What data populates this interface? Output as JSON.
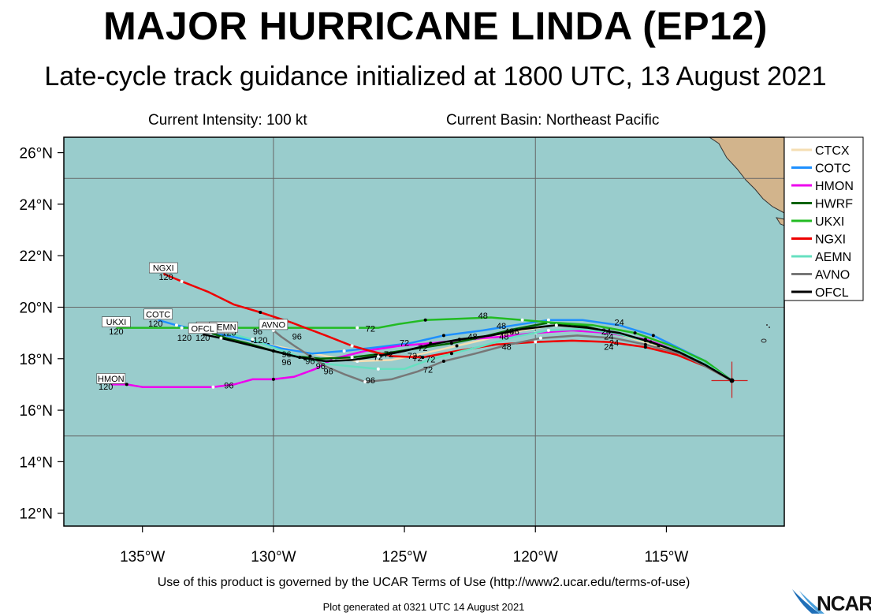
{
  "header": {
    "title": "MAJOR HURRICANE LINDA (EP12)",
    "subtitle": "Late-cycle track guidance initialized at 1800 UTC, 13 August 2021",
    "intensity": "Current Intensity: 100 kt",
    "basin": "Current Basin: Northeast Pacific"
  },
  "footer": {
    "terms": "Use of this product is governed by the UCAR Terms of Use (http://www2.ucar.edu/terms-of-use)",
    "generated": "Plot generated at 0321 UTC   14 August 2021",
    "logo": "NCAR"
  },
  "map": {
    "lon_range": [
      -138,
      -110.5
    ],
    "lat_range": [
      11.5,
      26.6
    ],
    "lon_ticks": [
      {
        "v": -135,
        "label": "135°W"
      },
      {
        "v": -130,
        "label": "130°W"
      },
      {
        "v": -125,
        "label": "125°W"
      },
      {
        "v": -120,
        "label": "120°W"
      },
      {
        "v": -115,
        "label": "115°W"
      }
    ],
    "lat_ticks": [
      {
        "v": 12,
        "label": "12°N"
      },
      {
        "v": 14,
        "label": "14°N"
      },
      {
        "v": 16,
        "label": "16°N"
      },
      {
        "v": 18,
        "label": "18°N"
      },
      {
        "v": 20,
        "label": "20°N"
      },
      {
        "v": 22,
        "label": "22°N"
      },
      {
        "v": 24,
        "label": "24°N"
      },
      {
        "v": 26,
        "label": "26°N"
      }
    ],
    "grid_lons": [
      -130,
      -120
    ],
    "grid_lats": [
      15,
      20,
      25
    ],
    "ocean_color": "#99cccc",
    "land_color": "#d2b48c",
    "storm_position": [
      -112.5,
      17.15
    ]
  },
  "chart_data": {
    "type": "map-tracks",
    "series": [
      {
        "name": "CTCX",
        "color": "#f5deb3",
        "points": [
          [
            -112.5,
            17.15
          ],
          [
            -113.5,
            17.7
          ],
          [
            -114.3,
            18.1
          ],
          [
            -115.3,
            18.5
          ],
          [
            -116.7,
            18.9
          ],
          [
            -118.0,
            19.2
          ],
          [
            -119.3,
            19.3
          ],
          [
            -120.5,
            19.1
          ],
          [
            -121.7,
            18.8
          ],
          [
            -123.0,
            18.5
          ],
          [
            -124.3,
            18.2
          ],
          [
            -125.5,
            17.95
          ],
          [
            -126.8,
            17.9
          ],
          [
            -128.0,
            18.1
          ],
          [
            -129.0,
            18.3
          ],
          [
            -130.2,
            18.55
          ],
          [
            -131.3,
            18.8
          ],
          [
            -132.0,
            18.95
          ]
        ],
        "end_label": "CTCX"
      },
      {
        "name": "COTC",
        "color": "#1e90ff",
        "points": [
          [
            -112.5,
            17.15
          ],
          [
            -113.5,
            17.9
          ],
          [
            -114.5,
            18.4
          ],
          [
            -115.5,
            18.9
          ],
          [
            -116.8,
            19.3
          ],
          [
            -118.2,
            19.5
          ],
          [
            -119.5,
            19.5
          ],
          [
            -120.8,
            19.3
          ],
          [
            -122.0,
            19.1
          ],
          [
            -123.5,
            18.9
          ],
          [
            -124.8,
            18.6
          ],
          [
            -126.0,
            18.45
          ],
          [
            -127.3,
            18.3
          ],
          [
            -128.5,
            18.2
          ],
          [
            -129.7,
            18.4
          ],
          [
            -130.8,
            18.7
          ],
          [
            -131.8,
            18.9
          ],
          [
            -132.8,
            19.1
          ],
          [
            -133.7,
            19.3
          ],
          [
            -134.4,
            19.5
          ]
        ],
        "end_label": "COTC"
      },
      {
        "name": "HMON",
        "color": "#ee00ee",
        "points": [
          [
            -112.5,
            17.15
          ],
          [
            -113.5,
            17.8
          ],
          [
            -114.5,
            18.3
          ],
          [
            -115.8,
            18.75
          ],
          [
            -117.2,
            19.0
          ],
          [
            -118.6,
            19.1
          ],
          [
            -120.0,
            19.0
          ],
          [
            -121.3,
            18.85
          ],
          [
            -122.6,
            18.75
          ],
          [
            -124.0,
            18.6
          ],
          [
            -125.2,
            18.5
          ],
          [
            -126.5,
            18.3
          ],
          [
            -127.7,
            18.0
          ],
          [
            -128.4,
            17.6
          ],
          [
            -129.2,
            17.3
          ],
          [
            -130.0,
            17.2
          ],
          [
            -130.8,
            17.2
          ],
          [
            -131.5,
            17.0
          ],
          [
            -132.3,
            16.9
          ],
          [
            -133.5,
            16.9
          ],
          [
            -135.0,
            16.9
          ],
          [
            -135.6,
            17.0
          ],
          [
            -136.2,
            17.0
          ]
        ],
        "end_label": "HMON"
      },
      {
        "name": "HWRF",
        "color": "#006400",
        "points": [
          [
            -112.5,
            17.15
          ],
          [
            -113.5,
            17.8
          ],
          [
            -114.6,
            18.3
          ],
          [
            -115.8,
            18.7
          ],
          [
            -117.0,
            19.0
          ],
          [
            -118.3,
            19.3
          ],
          [
            -119.5,
            19.4
          ],
          [
            -120.8,
            19.15
          ],
          [
            -122.0,
            18.85
          ],
          [
            -123.2,
            18.6
          ],
          [
            -124.5,
            18.4
          ],
          [
            -125.8,
            18.2
          ],
          [
            -127.0,
            18.05
          ],
          [
            -128.2,
            18.0
          ],
          [
            -129.2,
            18.1
          ],
          [
            -130.0,
            18.3
          ],
          [
            -131.0,
            18.6
          ],
          [
            -131.8,
            18.8
          ],
          [
            -132.4,
            19.0
          ]
        ],
        "end_label": "HWRF"
      },
      {
        "name": "UKXI",
        "color": "#22bb22",
        "points": [
          [
            -112.5,
            17.15
          ],
          [
            -113.5,
            17.9
          ],
          [
            -114.8,
            18.5
          ],
          [
            -116.2,
            19.0
          ],
          [
            -117.8,
            19.3
          ],
          [
            -119.3,
            19.4
          ],
          [
            -120.5,
            19.5
          ],
          [
            -121.7,
            19.6
          ],
          [
            -123.0,
            19.55
          ],
          [
            -124.2,
            19.5
          ],
          [
            -125.2,
            19.35
          ],
          [
            -126.0,
            19.2
          ],
          [
            -126.8,
            19.2
          ],
          [
            -127.8,
            19.2
          ],
          [
            -128.9,
            19.2
          ],
          [
            -129.9,
            19.2
          ],
          [
            -131.0,
            19.2
          ],
          [
            -132.2,
            19.2
          ],
          [
            -133.5,
            19.2
          ],
          [
            -134.8,
            19.2
          ],
          [
            -136.0,
            19.2
          ]
        ],
        "end_label": "UKXI"
      },
      {
        "name": "NGXI",
        "color": "#ee0000",
        "points": [
          [
            -112.5,
            17.15
          ],
          [
            -113.5,
            17.7
          ],
          [
            -114.6,
            18.15
          ],
          [
            -115.8,
            18.45
          ],
          [
            -117.2,
            18.65
          ],
          [
            -118.6,
            18.7
          ],
          [
            -120.0,
            18.65
          ],
          [
            -121.5,
            18.55
          ],
          [
            -123.0,
            18.3
          ],
          [
            -124.3,
            18.05
          ],
          [
            -125.5,
            18.1
          ],
          [
            -126.3,
            18.3
          ],
          [
            -127.0,
            18.5
          ],
          [
            -128.0,
            18.9
          ],
          [
            -129.3,
            19.4
          ],
          [
            -130.5,
            19.8
          ],
          [
            -131.5,
            20.1
          ],
          [
            -132.5,
            20.6
          ],
          [
            -133.5,
            21.0
          ],
          [
            -134.2,
            21.3
          ]
        ],
        "end_label": "NGXI"
      },
      {
        "name": "AEMN",
        "color": "#66e0c0",
        "points": [
          [
            -112.5,
            17.15
          ],
          [
            -113.5,
            17.8
          ],
          [
            -114.5,
            18.3
          ],
          [
            -115.8,
            18.7
          ],
          [
            -117.0,
            19.0
          ],
          [
            -118.3,
            19.15
          ],
          [
            -119.5,
            19.1
          ],
          [
            -120.8,
            18.85
          ],
          [
            -122.0,
            18.5
          ],
          [
            -123.2,
            18.2
          ],
          [
            -124.2,
            17.9
          ],
          [
            -125.0,
            17.6
          ],
          [
            -126.0,
            17.6
          ],
          [
            -127.0,
            17.7
          ],
          [
            -128.0,
            17.8
          ],
          [
            -128.8,
            18.0
          ],
          [
            -129.5,
            18.25
          ],
          [
            -130.2,
            18.5
          ],
          [
            -130.8,
            18.75
          ],
          [
            -131.4,
            18.9
          ],
          [
            -131.9,
            19.0
          ]
        ],
        "end_label": "AEMN"
      },
      {
        "name": "AVNO",
        "color": "#777777",
        "points": [
          [
            -112.5,
            17.15
          ],
          [
            -113.5,
            17.7
          ],
          [
            -114.5,
            18.2
          ],
          [
            -115.8,
            18.55
          ],
          [
            -117.0,
            18.8
          ],
          [
            -118.4,
            18.9
          ],
          [
            -119.8,
            18.8
          ],
          [
            -121.0,
            18.55
          ],
          [
            -122.3,
            18.2
          ],
          [
            -123.5,
            17.9
          ],
          [
            -124.5,
            17.5
          ],
          [
            -125.5,
            17.2
          ],
          [
            -126.5,
            17.1
          ],
          [
            -127.3,
            17.4
          ],
          [
            -128.0,
            17.7
          ],
          [
            -128.6,
            18.1
          ],
          [
            -129.2,
            18.5
          ],
          [
            -129.7,
            18.85
          ],
          [
            -130.0,
            19.1
          ]
        ],
        "end_label": "AVNO"
      },
      {
        "name": "OFCL",
        "color": "#000000",
        "points": [
          [
            -112.5,
            17.15
          ],
          [
            -113.5,
            17.75
          ],
          [
            -114.5,
            18.25
          ],
          [
            -115.6,
            18.65
          ],
          [
            -116.8,
            19.0
          ],
          [
            -118.0,
            19.2
          ],
          [
            -119.2,
            19.3
          ],
          [
            -120.5,
            19.15
          ],
          [
            -121.7,
            18.9
          ],
          [
            -122.9,
            18.75
          ],
          [
            -124.0,
            18.55
          ],
          [
            -125.0,
            18.3
          ],
          [
            -126.0,
            18.1
          ],
          [
            -127.0,
            17.95
          ],
          [
            -128.0,
            17.9
          ],
          [
            -129.0,
            18.05
          ],
          [
            -130.0,
            18.3
          ],
          [
            -131.0,
            18.55
          ],
          [
            -132.0,
            18.8
          ],
          [
            -132.7,
            18.95
          ]
        ],
        "end_label": "OFCL"
      }
    ],
    "hour_labels": [
      {
        "text": "120",
        "lon": -134.1,
        "lat": 21.05
      },
      {
        "text": "120",
        "lon": -134.5,
        "lat": 19.25
      },
      {
        "text": "120",
        "lon": -136.0,
        "lat": 18.95
      },
      {
        "text": "120",
        "lon": -133.4,
        "lat": 18.7
      },
      {
        "text": "120",
        "lon": -132.7,
        "lat": 18.7
      },
      {
        "text": "120",
        "lon": -132.7,
        "lat": 19.1
      },
      {
        "text": "120",
        "lon": -131.7,
        "lat": 18.9
      },
      {
        "text": "120",
        "lon": -130.5,
        "lat": 18.6
      },
      {
        "text": "120",
        "lon": -136.4,
        "lat": 16.8
      },
      {
        "text": "96",
        "lon": -130.6,
        "lat": 18.95
      },
      {
        "text": "96",
        "lon": -129.1,
        "lat": 18.75
      },
      {
        "text": "96",
        "lon": -129.5,
        "lat": 18.05
      },
      {
        "text": "96",
        "lon": -129.5,
        "lat": 17.75
      },
      {
        "text": "96",
        "lon": -128.6,
        "lat": 17.8
      },
      {
        "text": "96",
        "lon": -128.2,
        "lat": 17.6
      },
      {
        "text": "96",
        "lon": -127.9,
        "lat": 17.4
      },
      {
        "text": "96",
        "lon": -131.7,
        "lat": 16.85
      },
      {
        "text": "96",
        "lon": -126.3,
        "lat": 17.05
      },
      {
        "text": "72",
        "lon": -126.3,
        "lat": 19.05
      },
      {
        "text": "72",
        "lon": -125.0,
        "lat": 18.5
      },
      {
        "text": "72",
        "lon": -124.3,
        "lat": 18.3
      },
      {
        "text": "72",
        "lon": -126.0,
        "lat": 17.95
      },
      {
        "text": "72",
        "lon": -125.6,
        "lat": 18.05
      },
      {
        "text": "72",
        "lon": -124.7,
        "lat": 18.0
      },
      {
        "text": "72",
        "lon": -124.5,
        "lat": 17.9
      },
      {
        "text": "72",
        "lon": -124.0,
        "lat": 17.85
      },
      {
        "text": "72",
        "lon": -124.1,
        "lat": 17.45
      },
      {
        "text": "48",
        "lon": -122.0,
        "lat": 19.55
      },
      {
        "text": "48",
        "lon": -121.3,
        "lat": 19.15
      },
      {
        "text": "48",
        "lon": -121.0,
        "lat": 18.95
      },
      {
        "text": "48",
        "lon": -120.8,
        "lat": 18.95
      },
      {
        "text": "48",
        "lon": -122.4,
        "lat": 18.75
      },
      {
        "text": "48",
        "lon": -121.2,
        "lat": 18.75
      },
      {
        "text": "48",
        "lon": -121.1,
        "lat": 18.35
      },
      {
        "text": "24",
        "lon": -116.8,
        "lat": 19.3
      },
      {
        "text": "24",
        "lon": -117.3,
        "lat": 18.95
      },
      {
        "text": "24",
        "lon": -117.2,
        "lat": 18.75
      },
      {
        "text": "24",
        "lon": -117.0,
        "lat": 18.5
      },
      {
        "text": "24",
        "lon": -117.2,
        "lat": 18.35
      }
    ]
  }
}
